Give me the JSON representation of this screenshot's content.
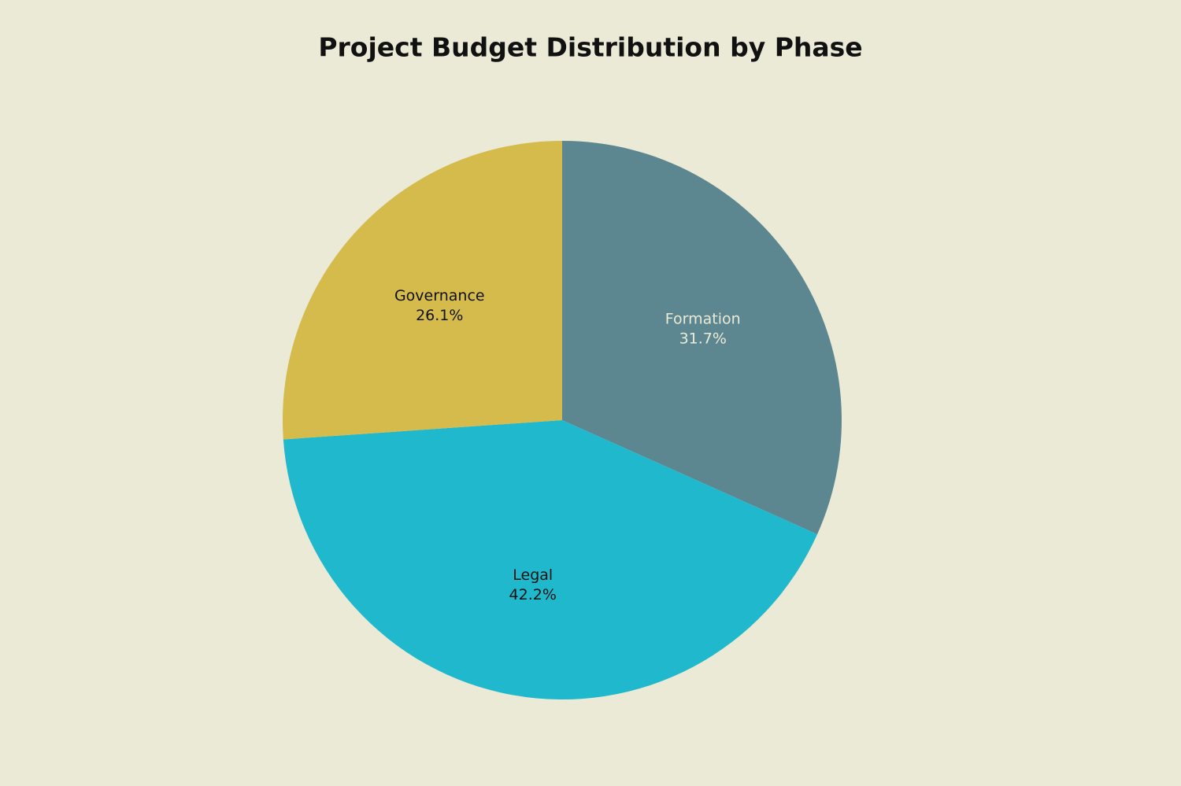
{
  "chart_data": {
    "type": "pie",
    "title": "Project Budget Distribution by Phase",
    "categories": [
      "Formation",
      "Legal",
      "Governance"
    ],
    "values": [
      31.7,
      42.2,
      26.1
    ],
    "value_labels": [
      "31.7%",
      "42.2%",
      "26.1%"
    ],
    "colors": [
      "#5d8790",
      "#20b8cc",
      "#d4bb4c"
    ]
  }
}
